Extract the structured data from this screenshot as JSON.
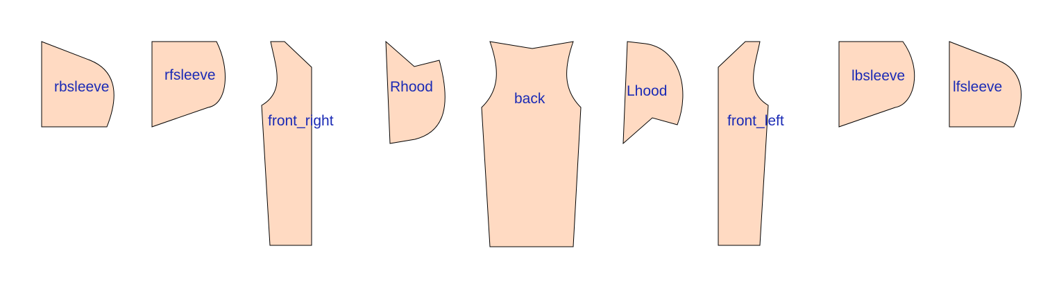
{
  "colors": {
    "piece_fill": "#ffdac2",
    "piece_stroke": "#000000",
    "label_color": "#1a2ab5",
    "background": "#ffffff"
  },
  "pieces": [
    {
      "id": "rbsleeve",
      "label": "rbsleeve"
    },
    {
      "id": "rfsleeve",
      "label": "rfsleeve"
    },
    {
      "id": "front_right",
      "label": "front_right"
    },
    {
      "id": "Rhood",
      "label": "Rhood"
    },
    {
      "id": "back",
      "label": "back"
    },
    {
      "id": "Lhood",
      "label": "Lhood"
    },
    {
      "id": "front_left",
      "label": "front_left"
    },
    {
      "id": "lbsleeve",
      "label": "lbsleeve"
    },
    {
      "id": "lfsleeve",
      "label": "lfsleeve"
    }
  ]
}
